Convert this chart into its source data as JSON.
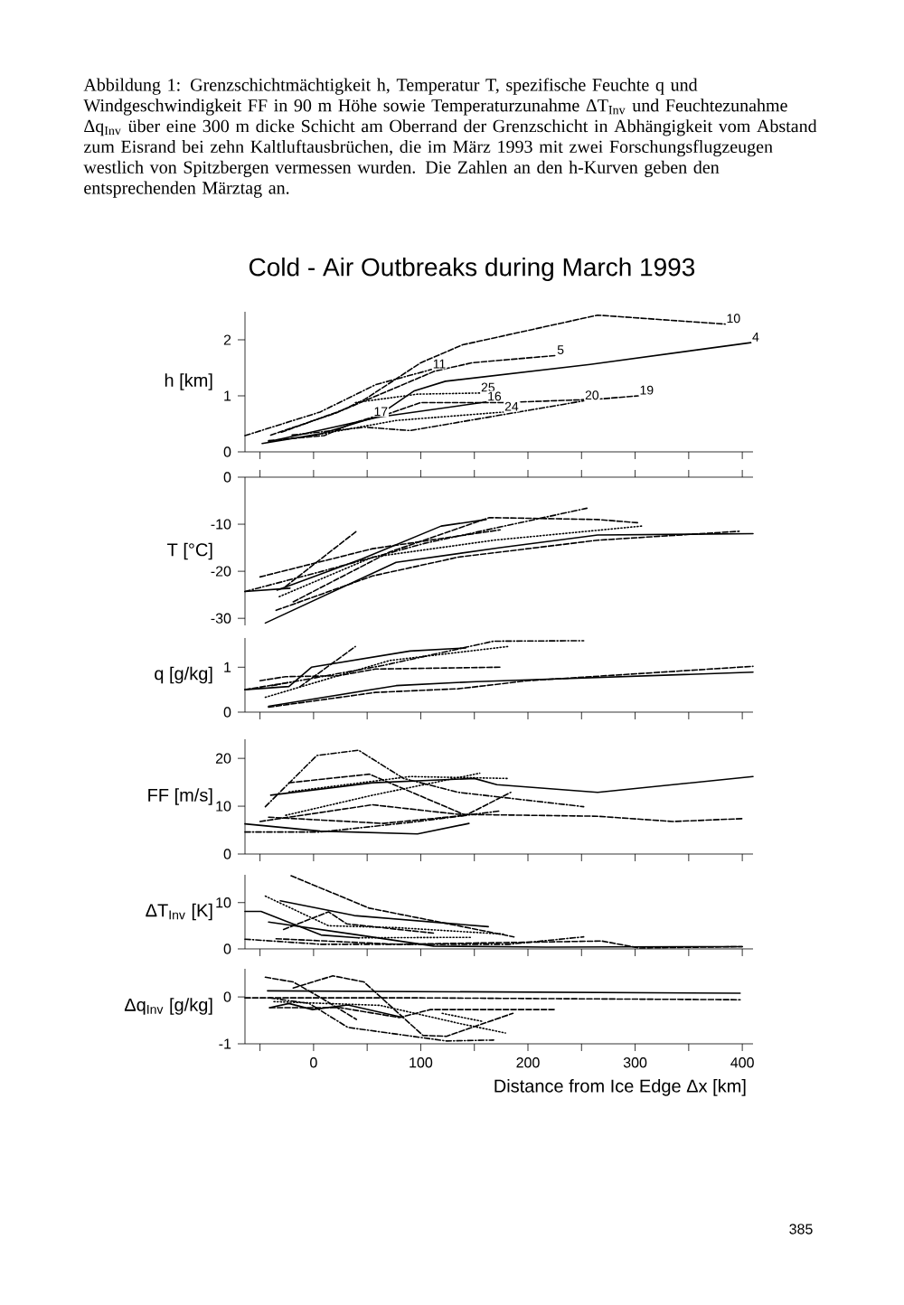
{
  "chart_data": [
    {
      "type": "line",
      "title": "Cold - Air Outbreaks during March 1993",
      "ylabel": "h [km]",
      "tick_labels": "y",
      "annotations": [
        "Abbildung 1: Grenzschichtmächtigkeit h, Temperatur T, spezifische Feuchte q und Windgeschwindigkeit FF in 90 m Höhe sowie Temperaturzunahme ΔT$_{Inv}$ und Feuchtezunahme Δq$_{Inv}$ über eine 300 m dicke Schicht am Oberrand der Grenzschicht in Abhängigkeit vom Abstand zum Eisrand bei zehn Kaltluftausbrüchen, die im März 1993 mit zwei Forschungsflugzeugen westlich von Spitzbergen vermessen wurden. Die Zahlen an den h-Kurven geben den entsprechenden Märztag an.",
        "385"
      ],
      "xlim": [
        -64,
        410
      ],
      "ylim": [
        0,
        2.5
      ],
      "xticks": [
        {
          "value": -50,
          "label": null
        },
        0,
        {
          "value": 50,
          "label": null
        },
        100,
        {
          "value": 150,
          "label": null
        },
        200,
        {
          "value": 250,
          "label": null
        },
        300,
        {
          "value": 350,
          "label": null
        },
        400
      ],
      "yticks": [
        0,
        1,
        2
      ],
      "series": [
        {
          "name": "10",
          "color": "#000000",
          "line_style": "dashed",
          "x": [
            -40,
            22,
            48,
            100,
            139,
            265,
            384
          ],
          "values": [
            0.3,
            0.7,
            0.94,
            1.59,
            1.91,
            2.44,
            2.28
          ]
        },
        {
          "name": "4",
          "color": "#000000",
          "line_style": "solid",
          "x": [
            -48,
            6,
            58,
            94,
            123,
            258,
            408
          ],
          "values": [
            0.15,
            0.32,
            0.62,
            1.09,
            1.26,
            1.56,
            1.95
          ]
        },
        {
          "name": "5",
          "color": "#000000",
          "line_style": "dashed",
          "x": [
            -30,
            29,
            113,
            148,
            226
          ],
          "values": [
            0.35,
            0.76,
            1.44,
            1.59,
            1.72
          ]
        },
        {
          "name": "11",
          "color": "#000000",
          "line_style": "dashdot",
          "x": [
            -64,
            6,
            58,
            110
          ],
          "values": [
            0.29,
            0.71,
            1.2,
            1.47
          ]
        },
        {
          "name": "25",
          "color": "#000000",
          "line_style": "dotted",
          "x": [
            39,
            97,
            155
          ],
          "values": [
            0.88,
            1.03,
            1.05
          ]
        },
        {
          "name": "16",
          "color": "#000000",
          "line_style": "solid",
          "x": [
            -42,
            61,
            161
          ],
          "values": [
            0.18,
            0.62,
            0.89
          ]
        },
        {
          "name": "19",
          "color": "#000000",
          "line_style": "dashed",
          "x": [
            61,
            100,
            177,
            265,
            303
          ],
          "values": [
            0.62,
            0.88,
            0.88,
            0.94,
            1.0
          ]
        },
        {
          "name": "20",
          "color": "#000000",
          "line_style": "dashdot",
          "x": [
            -20,
            48,
            90,
            252
          ],
          "values": [
            0.3,
            0.44,
            0.38,
            0.91
          ]
        },
        {
          "name": "24",
          "color": "#000000",
          "line_style": "dotted",
          "x": [
            -10,
            77,
            177
          ],
          "values": [
            0.26,
            0.56,
            0.71
          ]
        },
        {
          "name": "17",
          "color": "#000000",
          "line_style": "dashed",
          "x": [
            -42,
            10,
            35,
            55
          ],
          "values": [
            0.2,
            0.29,
            0.5,
            0.62
          ]
        }
      ]
    },
    {
      "type": "line",
      "ylabel": "T [°C]",
      "tick_labels": "y",
      "xlim": [
        -64,
        410
      ],
      "ylim": [
        -31.5,
        0
      ],
      "xticks": [
        {
          "value": -50,
          "label": null
        },
        0,
        {
          "value": 50,
          "label": null
        },
        100,
        {
          "value": 150,
          "label": null
        },
        200,
        {
          "value": 250,
          "label": null
        },
        300,
        {
          "value": 350,
          "label": null
        },
        400
      ],
      "yticks": [
        -30,
        -20,
        -10,
        0
      ],
      "series": [
        {
          "color": "#000000",
          "line_style": "solid",
          "x": [
            -45,
            77,
            174,
            265,
            410
          ],
          "values": [
            -31.0,
            -18.1,
            -15.0,
            -12.3,
            -12.0
          ]
        },
        {
          "color": "#000000",
          "line_style": "dashed",
          "x": [
            -35,
            55,
            135,
            265,
            397
          ],
          "values": [
            -28.3,
            -21,
            -17,
            -13.4,
            -11.5
          ]
        },
        {
          "color": "#000000",
          "line_style": "dotted",
          "x": [
            -32,
            55,
            168,
            306
          ],
          "values": [
            -25.4,
            -17,
            -13.4,
            -10.4
          ]
        },
        {
          "color": "#000000",
          "line_style": "dashed",
          "x": [
            -50,
            55,
            174
          ],
          "values": [
            -21.2,
            -15.2,
            -11.2
          ]
        },
        {
          "color": "#000000",
          "line_style": "dashdot",
          "x": [
            -64,
            3,
            103,
            255
          ],
          "values": [
            -24.3,
            -20.3,
            -14.1,
            -6.6
          ]
        },
        {
          "color": "#000000",
          "line_style": "solid",
          "x": [
            -34,
            45,
            119,
            161
          ],
          "values": [
            -24,
            -17.4,
            -10.4,
            -9
          ]
        },
        {
          "color": "#000000",
          "line_style": "dashed",
          "x": [
            -26,
            40
          ],
          "values": [
            -23.2,
            -11.5
          ]
        },
        {
          "color": "#000000",
          "line_style": "dashed",
          "x": [
            -19,
            71,
            164,
            265,
            303
          ],
          "values": [
            -26.5,
            -15.9,
            -8.6,
            -9,
            -9.7
          ]
        },
        {
          "color": "#000000",
          "line_style": "solid",
          "x": [
            -64,
            -22
          ],
          "values": [
            -24.3,
            -23.6
          ]
        }
      ]
    },
    {
      "type": "line",
      "ylabel": "q [g/kg]",
      "tick_labels": "y",
      "xlim": [
        -64,
        410
      ],
      "ylim": [
        0,
        1.65
      ],
      "xticks": [
        {
          "value": -50,
          "label": null
        },
        0,
        {
          "value": 50,
          "label": null
        },
        100,
        {
          "value": 150,
          "label": null
        },
        200,
        {
          "value": 250,
          "label": null
        },
        300,
        {
          "value": 350,
          "label": null
        },
        400
      ],
      "yticks": [
        0,
        1
      ],
      "series": [
        {
          "color": "#000000",
          "line_style": "solid",
          "x": [
            -42,
            77,
            152,
            410
          ],
          "values": [
            0.13,
            0.59,
            0.68,
            0.89
          ]
        },
        {
          "color": "#000000",
          "line_style": "dashed",
          "x": [
            -42,
            58,
            135,
            200,
            410
          ],
          "values": [
            0.11,
            0.44,
            0.52,
            0.7,
            1.02
          ]
        },
        {
          "color": "#000000",
          "line_style": "dashed",
          "x": [
            -50,
            -26,
            23,
            58,
            174
          ],
          "values": [
            0.7,
            0.79,
            0.81,
            0.96,
            1.0
          ]
        },
        {
          "color": "#000000",
          "line_style": "solid",
          "x": [
            -64,
            -23,
            -2,
            90,
            142
          ],
          "values": [
            0.5,
            0.57,
            1.0,
            1.36,
            1.43
          ]
        },
        {
          "color": "#000000",
          "line_style": "dashdot",
          "x": [
            -39,
            65,
            168,
            252
          ],
          "values": [
            0.59,
            1.04,
            1.58,
            1.59
          ]
        },
        {
          "color": "#000000",
          "line_style": "dashed",
          "x": [
            -13,
            39
          ],
          "values": [
            0.56,
            1.46
          ]
        },
        {
          "color": "#000000",
          "line_style": "dotted",
          "x": [
            -45,
            71,
            181
          ],
          "values": [
            0.33,
            1.15,
            1.46
          ]
        },
        {
          "color": "#000000",
          "line_style": "dashed",
          "x": [
            -64,
            -21
          ],
          "values": [
            0.5,
            0.67
          ]
        }
      ]
    },
    {
      "type": "line",
      "ylabel": "FF [m/s]",
      "tick_labels": "y",
      "xlim": [
        -64,
        410
      ],
      "ylim": [
        0,
        24
      ],
      "xticks": [
        {
          "value": -50,
          "label": null
        },
        0,
        {
          "value": 50,
          "label": null
        },
        100,
        {
          "value": 150,
          "label": null
        },
        200,
        {
          "value": 250,
          "label": null
        },
        300,
        {
          "value": 350,
          "label": null
        },
        400
      ],
      "yticks": [
        0,
        10,
        20
      ],
      "series": [
        {
          "color": "#000000",
          "line_style": "solid",
          "x": [
            -40,
            55,
            150,
            171,
            265,
            410
          ],
          "values": [
            12.3,
            14.9,
            15.8,
            14.5,
            12.9,
            16.2
          ]
        },
        {
          "color": "#000000",
          "line_style": "dashed",
          "x": [
            -50,
            55,
            135,
            265,
            335,
            400
          ],
          "values": [
            6.8,
            10.3,
            8.3,
            7.9,
            6.8,
            7.4
          ]
        },
        {
          "color": "#000000",
          "line_style": "dotted",
          "x": [
            -26,
            55,
            155
          ],
          "values": [
            8.1,
            12.3,
            16.9
          ]
        },
        {
          "color": "#000000",
          "line_style": "dashdot",
          "x": [
            -45,
            3,
            42,
            84,
            135,
            252
          ],
          "values": [
            9.9,
            20.6,
            21.7,
            15.8,
            12.9,
            9.9
          ]
        },
        {
          "color": "#000000",
          "line_style": "dashed",
          "x": [
            -23,
            52,
            142,
            184
          ],
          "values": [
            14.9,
            16.7,
            8.1,
            12.9
          ]
        },
        {
          "color": "#000000",
          "line_style": "solid",
          "x": [
            -64,
            6,
            97,
            145
          ],
          "values": [
            6.3,
            4.8,
            4.2,
            6.4
          ]
        },
        {
          "color": "#000000",
          "line_style": "dashdot",
          "x": [
            -64,
            6,
            90,
            174
          ],
          "values": [
            4.6,
            4.6,
            6.6,
            9.0
          ]
        },
        {
          "color": "#000000",
          "line_style": "dotted",
          "x": [
            -23,
            90,
            181
          ],
          "values": [
            13,
            16.2,
            15.8
          ]
        },
        {
          "color": "#000000",
          "line_style": "dashed",
          "x": [
            -42,
            65,
            142
          ],
          "values": [
            7.7,
            6.4,
            8.1
          ]
        }
      ]
    },
    {
      "type": "line",
      "ylabel": "ΔT$_{Inv}$ [K]",
      "tick_labels": "y",
      "xlim": [
        -64,
        410
      ],
      "ylim": [
        0,
        16
      ],
      "xticks": [
        {
          "value": -50,
          "label": null
        },
        0,
        {
          "value": 50,
          "label": null
        },
        100,
        {
          "value": 150,
          "label": null
        },
        200,
        {
          "value": 250,
          "label": null
        },
        300,
        {
          "value": 350,
          "label": null
        },
        400
      ],
      "yticks": [
        0,
        10
      ],
      "series": [
        {
          "color": "#000000",
          "line_style": "solid",
          "x": [
            -31,
            38,
            163
          ],
          "values": [
            10.4,
            7.2,
            4.8
          ]
        },
        {
          "color": "#000000",
          "line_style": "dashed",
          "x": [
            -21,
            52,
            187
          ],
          "values": [
            15.8,
            8.8,
            2.6
          ]
        },
        {
          "color": "#000000",
          "line_style": "dotted",
          "x": [
            -45,
            14,
            77,
            177
          ],
          "values": [
            11.4,
            5,
            4.6,
            3.2
          ]
        },
        {
          "color": "#000000",
          "line_style": "solid",
          "x": [
            -42,
            42,
            112,
            217,
            400
          ],
          "values": [
            5.8,
            3.0,
            0.6,
            0.4,
            0.5
          ]
        },
        {
          "color": "#000000",
          "line_style": "dashdot",
          "x": [
            -64,
            7,
            182,
            252
          ],
          "values": [
            2.1,
            1.0,
            1.0,
            2.6
          ]
        },
        {
          "color": "#000000",
          "line_style": "dashed",
          "x": [
            -35,
            77,
            269,
            304,
            400
          ],
          "values": [
            2.2,
            1.0,
            1.7,
            0.2,
            0.5
          ]
        },
        {
          "color": "#000000",
          "line_style": "solid",
          "x": [
            -64,
            -49,
            7,
            42
          ],
          "values": [
            8.1,
            8.1,
            3.0,
            2.4
          ]
        },
        {
          "color": "#000000",
          "line_style": "dotted",
          "x": [
            42,
            147
          ],
          "values": [
            2.4,
            2.5
          ]
        },
        {
          "color": "#000000",
          "line_style": "dashed",
          "x": [
            -28,
            14,
            31,
            112
          ],
          "values": [
            4.2,
            8,
            5.4,
            3.4
          ]
        }
      ]
    },
    {
      "type": "line",
      "ylabel": "Δq$_{Inv}$ [g/kg]",
      "xlabel": "Distance from Ice Edge Δx [km]",
      "xlim": [
        -64,
        410
      ],
      "ylim": [
        -1,
        0.6
      ],
      "xticks": [
        {
          "value": -50,
          "label": null
        },
        0,
        {
          "value": 50,
          "label": null
        },
        100,
        {
          "value": 150,
          "label": null
        },
        200,
        {
          "value": 250,
          "label": null
        },
        300,
        {
          "value": 350,
          "label": null
        },
        400
      ],
      "yticks": [
        -1,
        0
      ],
      "series": [
        {
          "color": "#000000",
          "line_style": "solid",
          "x": [
            -43,
            398
          ],
          "values": [
            0.13,
            0.08
          ]
        },
        {
          "color": "#000000",
          "line_style": "dashed",
          "x": [
            -64,
            98,
            398
          ],
          "values": [
            -0.02,
            -0.02,
            -0.06
          ]
        },
        {
          "color": "#000000",
          "line_style": "dashed",
          "x": [
            -45,
            -19,
            7,
            40
          ],
          "values": [
            0.42,
            0.32,
            -0.02,
            -0.48
          ]
        },
        {
          "color": "#000000",
          "line_style": "dashed",
          "x": [
            -19,
            18,
            47,
            102,
            124,
            186
          ],
          "values": [
            0.19,
            0.45,
            0.32,
            -0.82,
            -0.84,
            -0.35
          ]
        },
        {
          "color": "#000000",
          "line_style": "dashdot",
          "x": [
            -41,
            -4,
            32,
            124,
            168
          ],
          "values": [
            -0.02,
            -0.14,
            -0.65,
            -0.94,
            -0.92
          ]
        },
        {
          "color": "#000000",
          "line_style": "dotted",
          "x": [
            -37,
            62,
            135,
            179
          ],
          "values": [
            -0.1,
            -0.18,
            -0.56,
            -0.77
          ]
        },
        {
          "color": "#000000",
          "line_style": "dashed",
          "x": [
            -41,
            25,
            80,
            109,
            225
          ],
          "values": [
            -0.23,
            -0.23,
            -0.44,
            -0.27,
            -0.27
          ]
        },
        {
          "color": "#000000",
          "line_style": "solid",
          "x": [
            -41,
            -23,
            -1,
            32,
            84
          ],
          "values": [
            -0.23,
            -0.14,
            -0.27,
            -0.17,
            -0.44
          ]
        },
        {
          "color": "#000000",
          "line_style": "dotted",
          "x": [
            120,
            157
          ],
          "values": [
            -0.35,
            -0.52
          ]
        }
      ]
    }
  ]
}
